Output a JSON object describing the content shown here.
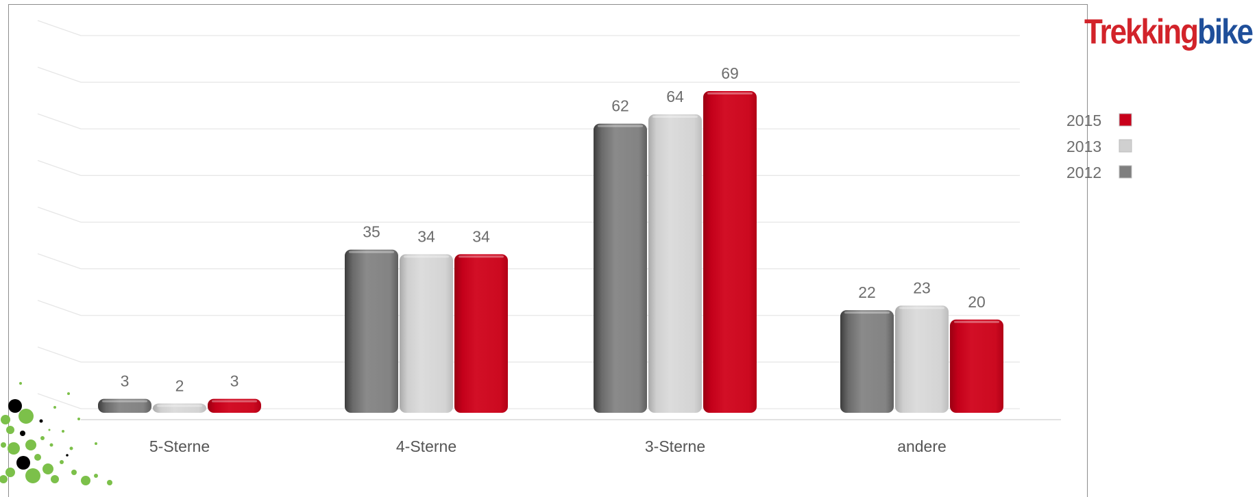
{
  "logo": {
    "part1": "Trekking",
    "part2": "bike"
  },
  "chart_data": {
    "type": "bar",
    "title": "",
    "xlabel": "",
    "ylabel": "",
    "ylim": [
      0,
      80
    ],
    "grid": true,
    "legend_position": "right",
    "categories": [
      "5-Sterne",
      "4-Sterne",
      "3-Sterne",
      "andere"
    ],
    "series": [
      {
        "name": "2012",
        "color": "#7f7f7f",
        "values": [
          3,
          35,
          62,
          22
        ]
      },
      {
        "name": "2013",
        "color": "#d0d0d0",
        "values": [
          2,
          34,
          64,
          23
        ]
      },
      {
        "name": "2015",
        "color": "#c8001a",
        "values": [
          3,
          34,
          69,
          20
        ]
      }
    ],
    "legend_order": [
      "2015",
      "2013",
      "2012"
    ]
  }
}
